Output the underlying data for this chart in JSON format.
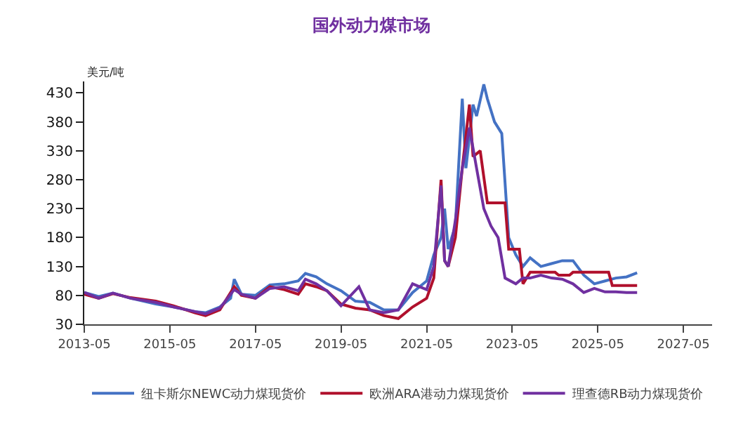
{
  "chart_data": {
    "type": "line",
    "title": "国外动力煤市场",
    "ylabel": "美元/吨",
    "xlim": [
      "2013-05",
      "2028-01"
    ],
    "xticks": [
      {
        "value": "2013-05",
        "label": "2013-05"
      },
      {
        "value": "2015-05",
        "label": "2015-05"
      },
      {
        "value": "2017-05",
        "label": "2017-05"
      },
      {
        "value": "2019-05",
        "label": "2019-05"
      },
      {
        "value": "2021-05",
        "label": "2021-05"
      },
      {
        "value": "2023-05",
        "label": "2023-05"
      },
      {
        "value": "2025-05",
        "label": "2025-05"
      },
      {
        "value": "2027-05",
        "label": "2027-05"
      }
    ],
    "ylim": [
      30,
      450
    ],
    "yticks": [
      30,
      80,
      130,
      180,
      230,
      280,
      330,
      380,
      430
    ],
    "legend": "bottom",
    "line_style": "solid",
    "marker": "none",
    "series": [
      {
        "name": "纽卡斯尔NEWC动力煤现货价",
        "color": "#4472c4",
        "x": [
          "2013-05",
          "2013-09",
          "2014-01",
          "2014-06",
          "2015-01",
          "2015-06",
          "2015-12",
          "2016-03",
          "2016-07",
          "2016-10",
          "2016-11",
          "2017-01",
          "2017-05",
          "2017-09",
          "2018-01",
          "2018-05",
          "2018-07",
          "2018-10",
          "2019-01",
          "2019-05",
          "2019-09",
          "2020-01",
          "2020-05",
          "2020-09",
          "2021-01",
          "2021-05",
          "2021-07",
          "2021-09",
          "2021-10",
          "2021-11",
          "2022-01",
          "2022-03",
          "2022-04",
          "2022-06",
          "2022-07",
          "2022-09",
          "2022-10",
          "2022-12",
          "2023-02",
          "2023-04",
          "2023-06",
          "2023-08",
          "2023-10",
          "2024-01",
          "2024-04",
          "2024-07",
          "2024-10",
          "2025-01",
          "2025-04",
          "2025-07",
          "2025-10",
          "2026-01",
          "2026-04"
        ],
        "values": [
          85,
          78,
          84,
          75,
          65,
          60,
          52,
          50,
          60,
          75,
          108,
          82,
          80,
          98,
          100,
          105,
          118,
          112,
          100,
          88,
          70,
          68,
          55,
          55,
          85,
          105,
          150,
          180,
          230,
          160,
          200,
          420,
          300,
          410,
          390,
          445,
          420,
          380,
          360,
          180,
          150,
          130,
          145,
          130,
          135,
          140,
          140,
          115,
          100,
          105,
          110,
          112,
          119
        ]
      },
      {
        "name": "欧洲ARA港动力煤现货价",
        "color": "#b0102c",
        "x": [
          "2013-05",
          "2013-09",
          "2014-01",
          "2014-06",
          "2015-01",
          "2015-06",
          "2015-12",
          "2016-03",
          "2016-07",
          "2016-11",
          "2017-01",
          "2017-05",
          "2017-09",
          "2018-01",
          "2018-05",
          "2018-07",
          "2018-10",
          "2019-01",
          "2019-05",
          "2019-09",
          "2020-01",
          "2020-05",
          "2020-09",
          "2021-01",
          "2021-05",
          "2021-07",
          "2021-09",
          "2021-10",
          "2021-11",
          "2022-01",
          "2022-03",
          "2022-05",
          "2022-06",
          "2022-08",
          "2022-10",
          "2022-11",
          "2023-03",
          "2023-04",
          "2023-07",
          "2023-08",
          "2023-10",
          "2024-05",
          "2024-06",
          "2024-09",
          "2024-10",
          "2025-08",
          "2025-09",
          "2026-04"
        ],
        "values": [
          82,
          75,
          83,
          76,
          70,
          62,
          50,
          45,
          55,
          95,
          80,
          75,
          95,
          90,
          82,
          100,
          95,
          88,
          65,
          58,
          55,
          45,
          40,
          60,
          75,
          110,
          280,
          140,
          130,
          180,
          300,
          410,
          320,
          330,
          240,
          240,
          240,
          160,
          160,
          100,
          120,
          120,
          115,
          115,
          120,
          120,
          97,
          97
        ]
      },
      {
        "name": "理查德RB动力煤现货价",
        "color": "#7030a0",
        "x": [
          "2013-05",
          "2013-09",
          "2014-01",
          "2014-06",
          "2015-01",
          "2015-06",
          "2015-12",
          "2016-03",
          "2016-07",
          "2016-11",
          "2017-01",
          "2017-05",
          "2017-09",
          "2018-01",
          "2018-05",
          "2018-07",
          "2018-10",
          "2019-01",
          "2019-05",
          "2019-10",
          "2020-01",
          "2020-05",
          "2020-09",
          "2021-01",
          "2021-05",
          "2021-07",
          "2021-09",
          "2021-10",
          "2021-11",
          "2022-01",
          "2022-03",
          "2022-05",
          "2022-07",
          "2022-09",
          "2022-11",
          "2023-01",
          "2023-03",
          "2023-06",
          "2023-08",
          "2023-10",
          "2024-01",
          "2024-04",
          "2024-07",
          "2024-10",
          "2025-01",
          "2025-04",
          "2025-07",
          "2025-10",
          "2026-01",
          "2026-04"
        ],
        "values": [
          85,
          75,
          84,
          75,
          68,
          60,
          52,
          48,
          58,
          90,
          82,
          75,
          92,
          95,
          88,
          108,
          100,
          88,
          62,
          95,
          55,
          50,
          55,
          100,
          90,
          130,
          270,
          140,
          130,
          210,
          300,
          370,
          300,
          230,
          200,
          180,
          110,
          100,
          110,
          110,
          115,
          110,
          108,
          100,
          85,
          92,
          86,
          86,
          85,
          85
        ]
      }
    ]
  }
}
